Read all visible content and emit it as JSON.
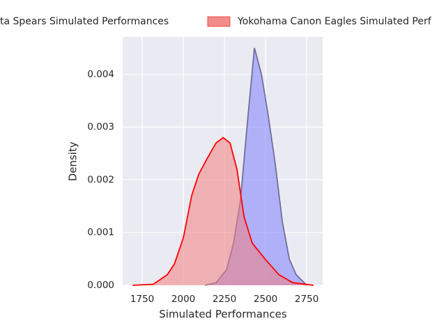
{
  "chart_data": {
    "type": "kde",
    "xlabel": "Simulated Performances",
    "ylabel": "Density",
    "xlim": [
      1631,
      2847
    ],
    "ylim": [
      0,
      0.00471
    ],
    "xticks": [
      1750,
      2000,
      2250,
      2500,
      2750
    ],
    "yticks": [
      {
        "value": 0,
        "label": "0.000"
      },
      {
        "value": 0.001,
        "label": "0.001"
      },
      {
        "value": 0.002,
        "label": "0.002"
      },
      {
        "value": 0.003,
        "label": "0.003"
      },
      {
        "value": 0.004,
        "label": "0.004"
      }
    ],
    "grid": true,
    "series": [
      {
        "name": "ta Spears Simulated Performances",
        "color": "#6f6f9a",
        "fill": "#8080ff",
        "x": [
          2131,
          2199,
          2263,
          2305,
          2347,
          2390,
          2432,
          2475,
          2517,
          2559,
          2602,
          2644,
          2686,
          2750
        ],
        "values": [
          0,
          5e-05,
          0.0003,
          0.0008,
          0.0016,
          0.0031,
          0.0045,
          0.004,
          0.0032,
          0.0023,
          0.0012,
          0.0005,
          0.0002,
          0
        ]
      },
      {
        "name": "Yokohama Canon Eagles Simulated Perf",
        "color": "#ff0000",
        "fill": "#f08080",
        "x": [
          1691,
          1818,
          1902,
          1945,
          2000,
          2051,
          2093,
          2144,
          2199,
          2242,
          2284,
          2326,
          2369,
          2419,
          2496,
          2581,
          2665,
          2792
        ],
        "values": [
          0,
          2e-05,
          0.0002,
          0.0004,
          0.0009,
          0.0017,
          0.0021,
          0.0024,
          0.0027,
          0.0028,
          0.0027,
          0.0022,
          0.0013,
          0.0008,
          0.0005,
          0.0002,
          5e-05,
          0
        ]
      }
    ]
  }
}
